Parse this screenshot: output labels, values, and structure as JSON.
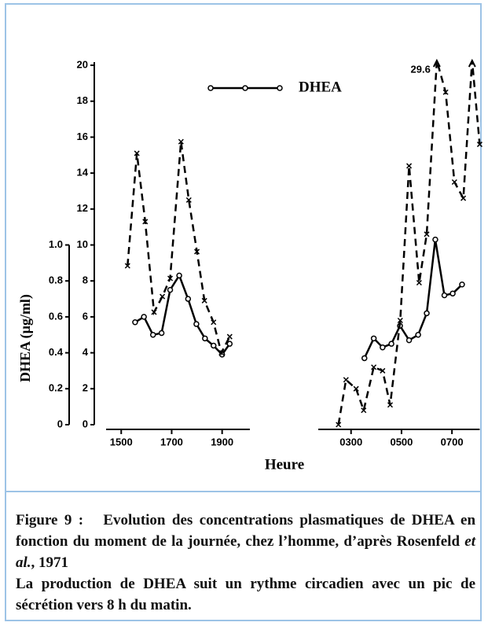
{
  "chart_data": {
    "type": "line",
    "ylabel": "DHEA (µg/ml)",
    "xlabel": "Heure",
    "ylim": [
      0,
      20
    ],
    "yticks": [
      0,
      2,
      4,
      6,
      8,
      10,
      12,
      14,
      16,
      18,
      20
    ],
    "y2lim": [
      0,
      1
    ],
    "y2ticks": [
      0,
      0.2,
      0.4,
      0.6,
      0.8,
      {
        "value": 1,
        "label": "1.0"
      }
    ],
    "xlim": [
      14.4,
      32.1
    ],
    "xbreak": [
      20.1,
      25.7
    ],
    "xticks": [
      {
        "value": 15,
        "label": "1500"
      },
      {
        "value": 17,
        "label": "1700"
      },
      {
        "value": 19,
        "label": "1900"
      },
      {
        "value": 27,
        "label": "0300"
      },
      {
        "value": 29,
        "label": "0500"
      },
      {
        "value": 31,
        "label": "0700"
      }
    ],
    "legend": "top",
    "series": [
      {
        "name": "DHEA",
        "color": "#000000",
        "axis": "y2",
        "style": "solid",
        "marker": "circle",
        "x": [
          15.55,
          15.9,
          16.26,
          16.6,
          16.94,
          17.3,
          17.65,
          17.98,
          18.32,
          18.66,
          19.0,
          19.3,
          null,
          27.53,
          27.9,
          28.25,
          28.6,
          28.94,
          29.3,
          29.66,
          30.0,
          30.34,
          30.7,
          31.03,
          31.4
        ],
        "values": [
          0.57,
          0.6,
          0.5,
          0.51,
          0.75,
          0.83,
          0.7,
          0.56,
          0.48,
          0.44,
          0.39,
          0.45,
          null,
          0.37,
          0.48,
          0.43,
          0.45,
          0.55,
          0.47,
          0.5,
          0.62,
          1.03,
          0.72,
          0.73,
          0.78
        ]
      },
      {
        "color": "#000000",
        "style": "dashed",
        "marker": "x",
        "x": [
          15.25,
          15.62,
          15.95,
          16.3,
          16.63,
          16.94,
          17.37,
          17.68,
          18.0,
          18.3,
          18.66,
          18.97,
          19.3,
          null,
          26.5,
          26.8,
          27.2,
          27.5,
          27.9,
          28.25,
          28.55,
          28.95,
          29.3,
          29.7,
          30.0,
          30.4,
          30.75,
          31.1,
          31.45,
          31.8,
          32.1
        ],
        "values": [
          8.84,
          15.1,
          11.3,
          6.26,
          7.13,
          8.14,
          15.75,
          12.5,
          9.63,
          6.9,
          5.7,
          4.0,
          4.9,
          null,
          0,
          2.5,
          2.0,
          0.8,
          3.2,
          3.0,
          1.1,
          5.8,
          14.4,
          7.9,
          10.6,
          29.6,
          18.5,
          13.5,
          12.6,
          20.6,
          15.6
        ],
        "value_labels": [
          null,
          null,
          null,
          null,
          null,
          null,
          null,
          null,
          null,
          null,
          null,
          null,
          null,
          null,
          null,
          null,
          null,
          null,
          null,
          null,
          null,
          null,
          null,
          null,
          null,
          "29.6",
          null,
          null,
          null,
          null,
          null
        ]
      }
    ]
  },
  "caption": {
    "figure": "Figure 9 :",
    "text": "Evolution des concentrations plasmatiques de DHEA en fonction du moment de la journée, chez l’homme, d’après Rosenfeld",
    "italic": "et al.",
    "end": ", 1971",
    "note": "La production de DHEA suit un rythme circadien avec un pic de sécrétion vers 8 h du matin."
  }
}
